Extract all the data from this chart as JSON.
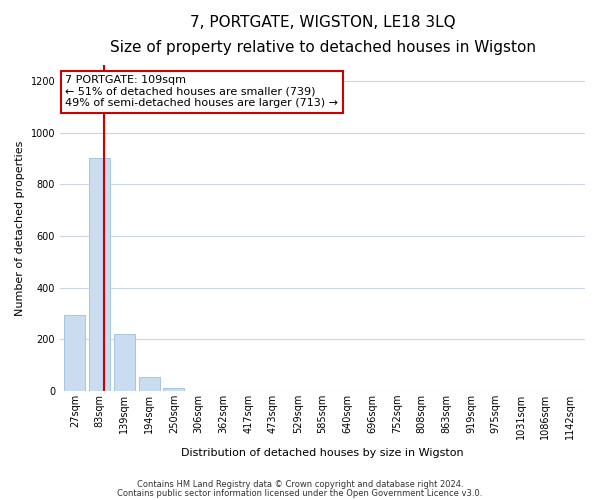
{
  "title": "7, PORTGATE, WIGSTON, LE18 3LQ",
  "subtitle": "Size of property relative to detached houses in Wigston",
  "xlabel": "Distribution of detached houses by size in Wigston",
  "ylabel": "Number of detached properties",
  "bar_labels": [
    "27sqm",
    "83sqm",
    "139sqm",
    "194sqm",
    "250sqm",
    "306sqm",
    "362sqm",
    "417sqm",
    "473sqm",
    "529sqm",
    "585sqm",
    "640sqm",
    "696sqm",
    "752sqm",
    "808sqm",
    "863sqm",
    "919sqm",
    "975sqm",
    "1031sqm",
    "1086sqm",
    "1142sqm"
  ],
  "bar_values": [
    295,
    900,
    220,
    55,
    10,
    0,
    0,
    0,
    0,
    0,
    0,
    0,
    0,
    0,
    0,
    0,
    0,
    0,
    0,
    0,
    0
  ],
  "bar_color": "#c9dcf0",
  "bar_edge_color": "#a8c4e0",
  "ylim": [
    0,
    1260
  ],
  "yticks": [
    0,
    200,
    400,
    600,
    800,
    1000,
    1200
  ],
  "property_line_color": "#cc0000",
  "property_line_x": 1.18,
  "annotation_line1": "7 PORTGATE: 109sqm",
  "annotation_line2": "← 51% of detached houses are smaller (739)",
  "annotation_line3": "49% of semi-detached houses are larger (713) →",
  "annotation_box_color": "#ffffff",
  "annotation_box_edge": "#cc0000",
  "footer_line1": "Contains HM Land Registry data © Crown copyright and database right 2024.",
  "footer_line2": "Contains public sector information licensed under the Open Government Licence v3.0.",
  "background_color": "#ffffff",
  "grid_color": "#ccd5e5",
  "title_fontsize": 11,
  "subtitle_fontsize": 9,
  "ylabel_fontsize": 8,
  "xlabel_fontsize": 8,
  "tick_fontsize": 7,
  "footer_fontsize": 6,
  "annot_fontsize": 8
}
